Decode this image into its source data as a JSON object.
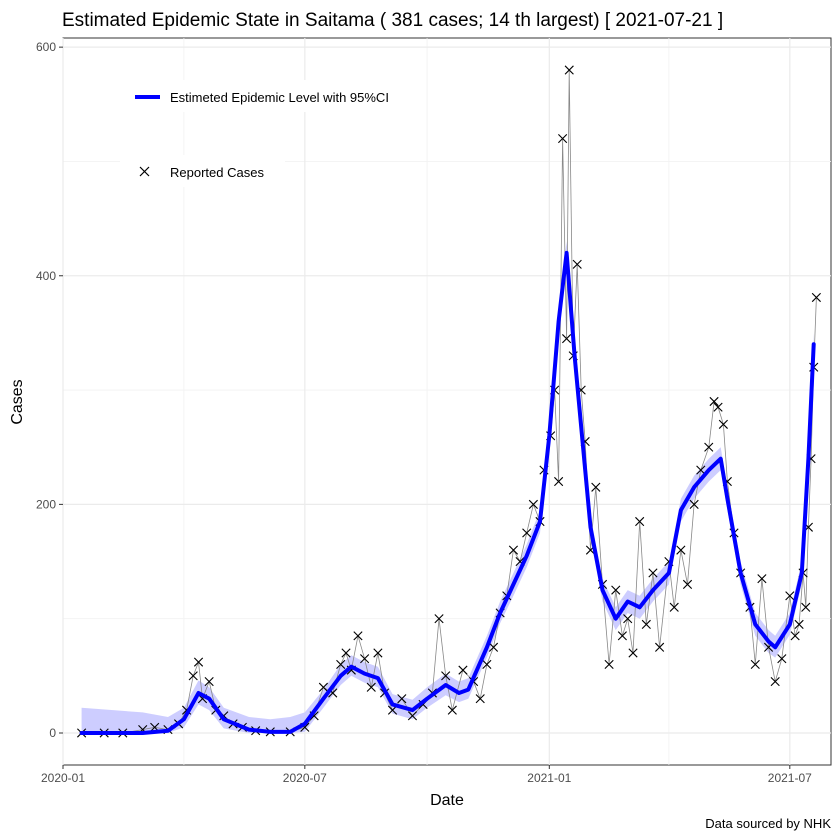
{
  "chart_data": {
    "type": "line",
    "title": "Estimated Epidemic State in Saitama  ( 381 cases; 14 th largest) [ 2021-07-21 ]",
    "xlabel": "Date",
    "ylabel": "Cases",
    "caption": "Data sourced by NHK",
    "x_ticks": [
      "2020-01",
      "2020-07",
      "2021-01",
      "2021-07"
    ],
    "y_ticks": [
      0,
      200,
      400,
      600
    ],
    "xlim": [
      "2020-01-01",
      "2021-08-01"
    ],
    "ylim": [
      -28,
      608
    ],
    "grid": true,
    "legend": {
      "placement": "top-left",
      "items": [
        {
          "label": "Estimeted Epidemic Level with 95%CI",
          "color": "#0000ff"
        },
        {
          "label": "Reported Cases",
          "marker": "x",
          "color": "#000000"
        }
      ]
    },
    "colors": {
      "estimate": "#0000ff",
      "ci_band": "#c8c8ff",
      "reported_line": "#888888",
      "reported_marker": "#000000"
    },
    "series": [
      {
        "name": "Estimeted Epidemic Level with 95%CI",
        "x": [
          "2020-01-15",
          "2020-03-01",
          "2020-03-20",
          "2020-04-01",
          "2020-04-12",
          "2020-04-20",
          "2020-05-01",
          "2020-05-20",
          "2020-06-05",
          "2020-06-20",
          "2020-07-01",
          "2020-07-15",
          "2020-07-28",
          "2020-08-05",
          "2020-08-15",
          "2020-08-25",
          "2020-09-05",
          "2020-09-20",
          "2020-10-01",
          "2020-10-15",
          "2020-10-25",
          "2020-11-01",
          "2020-11-15",
          "2020-11-25",
          "2020-12-05",
          "2020-12-15",
          "2020-12-25",
          "2021-01-01",
          "2021-01-08",
          "2021-01-14",
          "2021-01-20",
          "2021-02-01",
          "2021-02-10",
          "2021-02-20",
          "2021-03-01",
          "2021-03-10",
          "2021-03-20",
          "2021-04-01",
          "2021-04-10",
          "2021-04-20",
          "2021-05-01",
          "2021-05-10",
          "2021-05-15",
          "2021-05-25",
          "2021-06-05",
          "2021-06-15",
          "2021-06-20",
          "2021-07-01",
          "2021-07-10",
          "2021-07-15",
          "2021-07-19"
        ],
        "y": [
          0,
          0,
          2,
          12,
          35,
          30,
          12,
          3,
          1,
          1,
          8,
          30,
          50,
          58,
          52,
          48,
          25,
          20,
          30,
          42,
          35,
          38,
          75,
          105,
          130,
          155,
          185,
          260,
          360,
          420,
          330,
          180,
          125,
          100,
          115,
          110,
          125,
          140,
          195,
          215,
          230,
          240,
          205,
          140,
          95,
          80,
          75,
          95,
          140,
          240,
          340
        ],
        "ci_upper": [
          22,
          18,
          14,
          22,
          46,
          40,
          22,
          14,
          12,
          14,
          18,
          38,
          60,
          68,
          62,
          58,
          34,
          29,
          40,
          52,
          45,
          48,
          85,
          115,
          140,
          165,
          195,
          270,
          370,
          430,
          340,
          190,
          135,
          110,
          125,
          120,
          135,
          150,
          205,
          225,
          240,
          250,
          215,
          150,
          105,
          90,
          85,
          105,
          150,
          250,
          350
        ],
        "ci_lower": [
          0,
          0,
          0,
          5,
          25,
          20,
          4,
          0,
          0,
          0,
          1,
          22,
          42,
          50,
          44,
          40,
          17,
          12,
          22,
          33,
          27,
          30,
          66,
          96,
          120,
          145,
          175,
          250,
          350,
          410,
          320,
          170,
          115,
          90,
          105,
          100,
          115,
          130,
          185,
          205,
          220,
          230,
          195,
          130,
          85,
          70,
          66,
          86,
          130,
          230,
          330
        ]
      },
      {
        "name": "Reported Cases",
        "x": [
          "2020-01-15",
          "2020-02-01",
          "2020-02-15",
          "2020-03-01",
          "2020-03-10",
          "2020-03-20",
          "2020-03-28",
          "2020-04-03",
          "2020-04-08",
          "2020-04-12",
          "2020-04-15",
          "2020-04-20",
          "2020-04-25",
          "2020-05-01",
          "2020-05-08",
          "2020-05-15",
          "2020-05-25",
          "2020-06-05",
          "2020-06-20",
          "2020-07-01",
          "2020-07-08",
          "2020-07-15",
          "2020-07-22",
          "2020-07-28",
          "2020-08-01",
          "2020-08-05",
          "2020-08-10",
          "2020-08-15",
          "2020-08-20",
          "2020-08-25",
          "2020-08-30",
          "2020-09-05",
          "2020-09-12",
          "2020-09-20",
          "2020-09-28",
          "2020-10-05",
          "2020-10-10",
          "2020-10-15",
          "2020-10-20",
          "2020-10-28",
          "2020-11-05",
          "2020-11-10",
          "2020-11-15",
          "2020-11-20",
          "2020-11-25",
          "2020-11-30",
          "2020-12-05",
          "2020-12-10",
          "2020-12-15",
          "2020-12-20",
          "2020-12-25",
          "2020-12-28",
          "2021-01-02",
          "2021-01-05",
          "2021-01-08",
          "2021-01-11",
          "2021-01-14",
          "2021-01-16",
          "2021-01-19",
          "2021-01-22",
          "2021-01-25",
          "2021-01-28",
          "2021-02-01",
          "2021-02-05",
          "2021-02-10",
          "2021-02-15",
          "2021-02-20",
          "2021-02-25",
          "2021-03-01",
          "2021-03-05",
          "2021-03-10",
          "2021-03-15",
          "2021-03-20",
          "2021-03-25",
          "2021-04-01",
          "2021-04-05",
          "2021-04-10",
          "2021-04-15",
          "2021-04-20",
          "2021-04-25",
          "2021-05-01",
          "2021-05-05",
          "2021-05-08",
          "2021-05-12",
          "2021-05-15",
          "2021-05-20",
          "2021-05-25",
          "2021-06-01",
          "2021-06-05",
          "2021-06-10",
          "2021-06-15",
          "2021-06-20",
          "2021-06-25",
          "2021-07-01",
          "2021-07-05",
          "2021-07-08",
          "2021-07-11",
          "2021-07-13",
          "2021-07-15",
          "2021-07-17",
          "2021-07-19",
          "2021-07-21"
        ],
        "y": [
          0,
          0,
          0,
          3,
          5,
          3,
          8,
          20,
          50,
          62,
          30,
          45,
          20,
          15,
          8,
          5,
          2,
          1,
          1,
          5,
          15,
          40,
          35,
          60,
          70,
          55,
          85,
          65,
          40,
          70,
          35,
          20,
          30,
          15,
          25,
          35,
          100,
          50,
          20,
          55,
          45,
          30,
          60,
          75,
          105,
          120,
          160,
          150,
          175,
          200,
          185,
          230,
          260,
          300,
          220,
          520,
          345,
          580,
          330,
          410,
          300,
          255,
          160,
          215,
          130,
          60,
          125,
          85,
          100,
          70,
          185,
          95,
          140,
          75,
          150,
          110,
          160,
          130,
          200,
          230,
          250,
          290,
          285,
          270,
          220,
          175,
          140,
          110,
          60,
          135,
          75,
          45,
          65,
          120,
          85,
          95,
          140,
          110,
          180,
          240,
          320,
          381
        ]
      }
    ]
  }
}
